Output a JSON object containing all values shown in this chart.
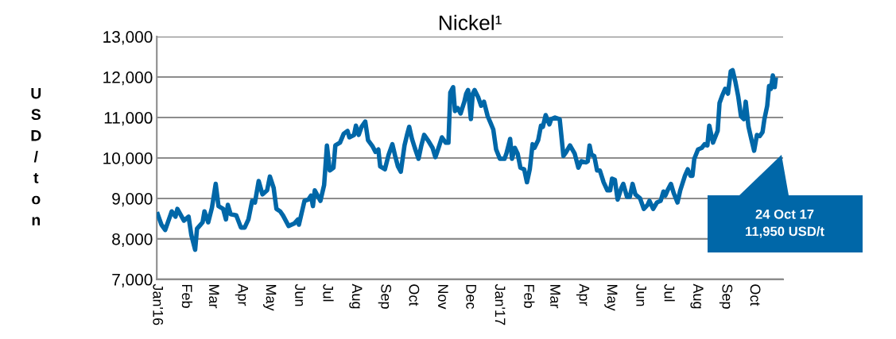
{
  "chart_data": {
    "type": "line",
    "title": "Nickel¹",
    "ylabel": "USD/ton",
    "x": [
      "2016-01-02",
      "2016-01-06",
      "2016-01-10",
      "2016-01-17",
      "2016-01-21",
      "2016-01-23",
      "2016-01-30",
      "2016-02-04",
      "2016-02-07",
      "2016-02-11",
      "2016-02-13",
      "2016-02-19",
      "2016-02-21",
      "2016-02-25",
      "2016-02-29",
      "2016-03-04",
      "2016-03-07",
      "2016-03-12",
      "2016-03-15",
      "2016-03-17",
      "2016-03-20",
      "2016-03-26",
      "2016-03-31",
      "2016-04-04",
      "2016-04-08",
      "2016-04-12",
      "2016-04-15",
      "2016-04-19",
      "2016-04-23",
      "2016-04-28",
      "2016-05-01",
      "2016-05-05",
      "2016-05-08",
      "2016-05-12",
      "2016-05-15",
      "2016-05-21",
      "2016-05-27",
      "2016-05-31",
      "2016-06-01",
      "2016-06-07",
      "2016-06-11",
      "2016-06-14",
      "2016-06-16",
      "2016-06-18",
      "2016-06-24",
      "2016-06-28",
      "2016-07-01",
      "2016-07-04",
      "2016-07-08",
      "2016-07-10",
      "2016-07-15",
      "2016-07-19",
      "2016-07-23",
      "2016-07-25",
      "2016-07-30",
      "2016-08-01",
      "2016-08-04",
      "2016-08-07",
      "2016-08-11",
      "2016-08-14",
      "2016-08-19",
      "2016-08-22",
      "2016-08-25",
      "2016-08-27",
      "2016-09-01",
      "2016-09-05",
      "2016-09-09",
      "2016-09-12",
      "2016-09-15",
      "2016-09-18",
      "2016-09-22",
      "2016-09-25",
      "2016-09-27",
      "2016-09-30",
      "2016-10-03",
      "2016-10-07",
      "2016-10-10",
      "2016-10-13",
      "2016-10-17",
      "2016-10-22",
      "2016-10-25",
      "2016-10-27",
      "2016-11-01",
      "2016-11-05",
      "2016-11-08",
      "2016-11-10",
      "2016-11-13",
      "2016-11-15",
      "2016-11-18",
      "2016-11-21",
      "2016-11-25",
      "2016-11-27",
      "2016-11-29",
      "2016-12-02",
      "2016-12-04",
      "2016-12-06",
      "2016-12-10",
      "2016-12-13",
      "2016-12-16",
      "2016-12-20",
      "2016-12-23",
      "2016-12-26",
      "2016-12-29",
      "2017-01-02",
      "2017-01-07",
      "2017-01-09",
      "2017-01-13",
      "2017-01-15",
      "2017-01-18",
      "2017-01-21",
      "2017-01-24",
      "2017-01-28",
      "2017-01-31",
      "2017-02-03",
      "2017-02-06",
      "2017-02-08",
      "2017-02-12",
      "2017-02-15",
      "2017-02-17",
      "2017-02-20",
      "2017-02-24",
      "2017-02-26",
      "2017-03-02",
      "2017-03-07",
      "2017-03-11",
      "2017-03-14",
      "2017-03-18",
      "2017-03-23",
      "2017-03-27",
      "2017-03-30",
      "2017-04-04",
      "2017-04-06",
      "2017-04-08",
      "2017-04-10",
      "2017-04-13",
      "2017-04-16",
      "2017-04-19",
      "2017-04-23",
      "2017-04-27",
      "2017-04-30",
      "2017-05-02",
      "2017-05-05",
      "2017-05-08",
      "2017-05-12",
      "2017-05-14",
      "2017-05-18",
      "2017-05-21",
      "2017-05-24",
      "2017-05-27",
      "2017-06-01",
      "2017-06-05",
      "2017-06-09",
      "2017-06-11",
      "2017-06-15",
      "2017-06-19",
      "2017-06-23",
      "2017-06-26",
      "2017-06-28",
      "2017-07-01",
      "2017-07-04",
      "2017-07-07",
      "2017-07-11",
      "2017-07-14",
      "2017-07-19",
      "2017-07-22",
      "2017-07-25",
      "2017-07-27",
      "2017-07-29",
      "2017-08-02",
      "2017-08-06",
      "2017-08-09",
      "2017-08-12",
      "2017-08-14",
      "2017-08-18",
      "2017-08-23",
      "2017-08-25",
      "2017-08-28",
      "2017-08-31",
      "2017-09-03",
      "2017-09-06",
      "2017-09-08",
      "2017-09-11",
      "2017-09-14",
      "2017-09-17",
      "2017-09-20",
      "2017-09-22",
      "2017-09-25",
      "2017-09-28",
      "2017-10-01",
      "2017-10-04",
      "2017-10-07",
      "2017-10-10",
      "2017-10-12",
      "2017-10-15",
      "2017-10-17",
      "2017-10-19",
      "2017-10-21",
      "2017-10-23",
      "2017-10-24"
    ],
    "series": [
      {
        "color": "#0067a8",
        "values": [
          8610,
          8350,
          8220,
          8680,
          8550,
          8740,
          8450,
          8550,
          8090,
          7730,
          8250,
          8410,
          8680,
          8410,
          8770,
          9360,
          8810,
          8740,
          8480,
          8840,
          8610,
          8580,
          8280,
          8280,
          8480,
          8940,
          8900,
          9430,
          9100,
          9200,
          9540,
          9260,
          8740,
          8680,
          8580,
          8320,
          8380,
          8480,
          8350,
          8940,
          8970,
          9070,
          8810,
          9200,
          8940,
          9330,
          10310,
          9690,
          9760,
          10310,
          10380,
          10600,
          10670,
          10510,
          10570,
          10800,
          10570,
          10770,
          10900,
          10440,
          10280,
          10150,
          10210,
          9790,
          9720,
          10080,
          10340,
          10050,
          9790,
          9660,
          10310,
          10600,
          10770,
          10470,
          10250,
          9980,
          10310,
          10570,
          10440,
          10250,
          10020,
          10150,
          10510,
          10380,
          10380,
          11620,
          11750,
          11160,
          11230,
          11100,
          11390,
          11590,
          11680,
          10960,
          11590,
          11680,
          11490,
          11290,
          11390,
          11030,
          10870,
          10700,
          10210,
          9980,
          9980,
          10110,
          10470,
          9980,
          10250,
          10110,
          9760,
          9720,
          9400,
          9720,
          10340,
          10250,
          10440,
          10800,
          10770,
          11060,
          10830,
          10960,
          11000,
          10960,
          10050,
          10150,
          10310,
          10110,
          9760,
          9920,
          9890,
          9920,
          10310,
          10080,
          10050,
          9690,
          9690,
          9400,
          9200,
          9200,
          9490,
          9460,
          8970,
          9260,
          9360,
          9040,
          9040,
          9360,
          9100,
          9000,
          8740,
          8840,
          8940,
          8740,
          8900,
          8940,
          9170,
          9070,
          9230,
          9360,
          9130,
          8900,
          9200,
          9560,
          9720,
          9560,
          9560,
          9980,
          10210,
          10250,
          10340,
          10310,
          10800,
          10380,
          10670,
          11360,
          11550,
          11710,
          11590,
          12140,
          12170,
          11880,
          11520,
          11030,
          10960,
          11390,
          10770,
          10470,
          10180,
          10570,
          10540,
          10640,
          10960,
          11290,
          11780,
          11710,
          12040,
          11750,
          11940
        ]
      }
    ],
    "ylim": [
      7000,
      13000
    ],
    "yticks": [
      {
        "value": 7000,
        "label": "7,000"
      },
      {
        "value": 8000,
        "label": "8,000"
      },
      {
        "value": 9000,
        "label": "9,000"
      },
      {
        "value": 10000,
        "label": "10,000"
      },
      {
        "value": 11000,
        "label": "11,000"
      },
      {
        "value": 12000,
        "label": "12,000"
      },
      {
        "value": 13000,
        "label": "13,000"
      }
    ],
    "xlim": [
      "2016-01-01",
      "2017-11-01"
    ],
    "xticks": [
      {
        "value": "2016-01-01",
        "label": "Jan'16"
      },
      {
        "value": "2016-02-01",
        "label": "Feb"
      },
      {
        "value": "2016-03-01",
        "label": "Mar"
      },
      {
        "value": "2016-04-01",
        "label": "Apr"
      },
      {
        "value": "2016-05-01",
        "label": "May"
      },
      {
        "value": "2016-06-01",
        "label": "Jun"
      },
      {
        "value": "2016-07-01",
        "label": "Jul"
      },
      {
        "value": "2016-08-01",
        "label": "Aug"
      },
      {
        "value": "2016-09-01",
        "label": "Sep"
      },
      {
        "value": "2016-10-01",
        "label": "Oct"
      },
      {
        "value": "2016-11-01",
        "label": "Nov"
      },
      {
        "value": "2016-12-01",
        "label": "Dec"
      },
      {
        "value": "2017-01-01",
        "label": "Jan'17"
      },
      {
        "value": "2017-02-01",
        "label": "Feb"
      },
      {
        "value": "2017-03-01",
        "label": "Mar"
      },
      {
        "value": "2017-04-01",
        "label": "Apr"
      },
      {
        "value": "2017-05-01",
        "label": "May"
      },
      {
        "value": "2017-06-01",
        "label": "Jun"
      },
      {
        "value": "2017-07-01",
        "label": "Jul"
      },
      {
        "value": "2017-08-01",
        "label": "Aug"
      },
      {
        "value": "2017-09-01",
        "label": "Sep"
      },
      {
        "value": "2017-10-01",
        "label": "Oct"
      }
    ],
    "grid": "y",
    "legend": false,
    "marker": "none",
    "line_style": "solid",
    "annotations": [
      "24 Oct 17\n11,950 USD/t"
    ]
  }
}
